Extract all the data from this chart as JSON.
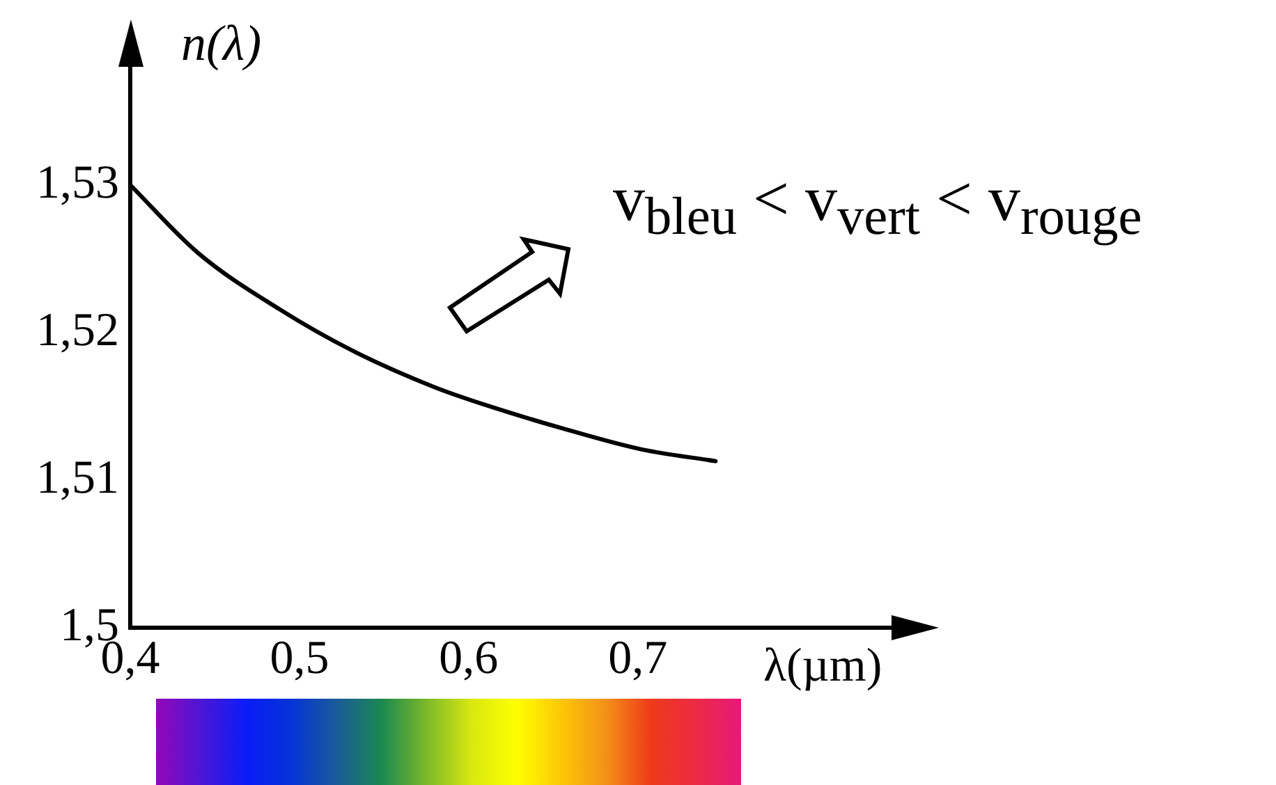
{
  "chart_data": {
    "type": "line",
    "xlabel": "λ(µm)",
    "ylabel": "n(λ)",
    "x": [
      0.4,
      0.44,
      0.488,
      0.531,
      0.58,
      0.61,
      0.656,
      0.702,
      0.746
    ],
    "series": [
      {
        "color": "#000000",
        "values": [
          1.53,
          1.5254,
          1.5216,
          1.5188,
          1.5163,
          1.5151,
          1.5135,
          1.5121,
          1.5113
        ]
      }
    ],
    "xlim": [
      0.4,
      0.85
    ],
    "ylim": [
      1.5,
      1.538
    ],
    "xticks": [
      {
        "value": 0.4,
        "label": "0,4"
      },
      {
        "value": 0.5,
        "label": "0,5"
      },
      {
        "value": 0.6,
        "label": "0,6"
      },
      {
        "value": 0.7,
        "label": "0,7"
      }
    ],
    "yticks": [
      {
        "value": 1.5,
        "label": "1,5"
      },
      {
        "value": 1.51,
        "label": "1,51"
      },
      {
        "value": 1.52,
        "label": "1,52"
      },
      {
        "value": 1.53,
        "label": "1,53"
      }
    ],
    "annotations": [
      "v$_{bleu}$ < v$_{vert}$ < v$_{rouge}$"
    ],
    "grid": false,
    "legend": false,
    "marker": "none",
    "line_style": "solid"
  }
}
